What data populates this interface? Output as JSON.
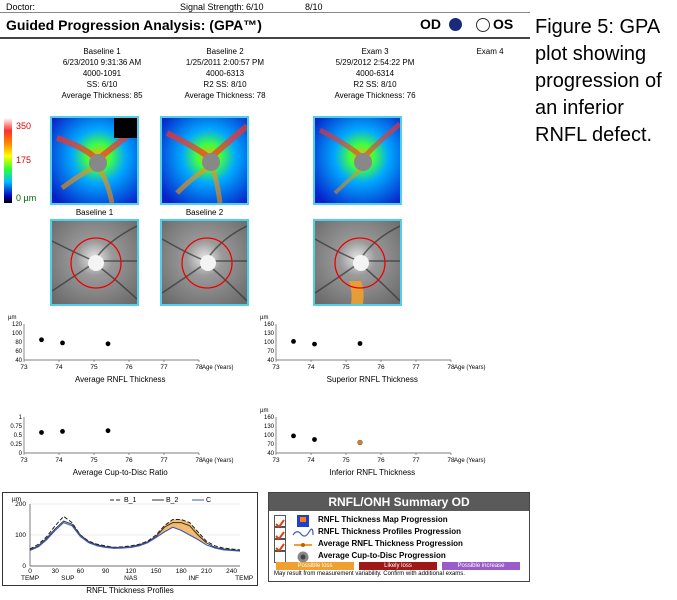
{
  "header": {
    "doctor_label": "Doctor:",
    "signal_label": "Signal Strength:",
    "signal_1": "6/10",
    "signal_2": "8/10",
    "title": "Guided Progression Analysis: (GPA™)",
    "od_label": "OD",
    "os_label": "OS"
  },
  "exams": [
    {
      "name": "Baseline 1",
      "datetime": "6/23/2010 9:31:36 AM",
      "id": "4000-1091",
      "ss": "SS: 6/10",
      "avg": "Average Thickness: 85"
    },
    {
      "name": "Baseline 2",
      "datetime": "1/25/2011 2:00:57 PM",
      "id": "4000-6313",
      "ss": "R2  SS: 8/10",
      "avg": "Average Thickness: 78"
    },
    {
      "name": "Exam 3",
      "datetime": "5/29/2012 2:54:22 PM",
      "id": "4000-6314",
      "ss": "R2  SS: 8/10",
      "avg": "Average Thickness: 76"
    },
    {
      "name": "Exam 4"
    }
  ],
  "colorbar": {
    "top": "350",
    "mid": "175",
    "bottom": "0 µm"
  },
  "fundus_captions": [
    "Baseline 1",
    "Baseline 2"
  ],
  "trend_charts": {
    "um_label": "µm",
    "age_axis": [
      "73",
      "74",
      "75",
      "76",
      "77",
      "78"
    ],
    "age_label": "Age (Years)",
    "avg_rnfl": {
      "title": "Average RNFL Thickness",
      "yticks": [
        "120",
        "100",
        "80",
        "60",
        "40"
      ]
    },
    "sup_rnfl": {
      "title": "Superior RNFL Thickness",
      "yticks": [
        "160",
        "130",
        "100",
        "70",
        "40"
      ]
    },
    "cdr": {
      "title": "Average Cup-to-Disc Ratio",
      "yticks": [
        "1",
        "0.75",
        "0.5",
        "0.25",
        "0"
      ]
    },
    "inf_rnfl": {
      "title": "Inferior RNFL Thickness",
      "yticks": [
        "160",
        "130",
        "100",
        "70",
        "40"
      ]
    }
  },
  "chart_data": [
    {
      "type": "scatter",
      "title": "Average RNFL Thickness",
      "xlabel": "Age (Years)",
      "ylabel": "µm",
      "xlim": [
        73,
        78
      ],
      "ylim": [
        40,
        120
      ],
      "series": [
        {
          "values": [
            {
              "x": 73.5,
              "y": 85
            },
            {
              "x": 74.1,
              "y": 78
            },
            {
              "x": 75.4,
              "y": 76
            }
          ]
        }
      ]
    },
    {
      "type": "scatter",
      "title": "Superior RNFL Thickness",
      "xlabel": "Age (Years)",
      "ylabel": "µm",
      "xlim": [
        73,
        78
      ],
      "ylim": [
        40,
        160
      ],
      "series": [
        {
          "values": [
            {
              "x": 73.5,
              "y": 102
            },
            {
              "x": 74.1,
              "y": 93
            },
            {
              "x": 75.4,
              "y": 95
            }
          ]
        }
      ]
    },
    {
      "type": "scatter",
      "title": "Average Cup-to-Disc Ratio",
      "xlabel": "Age (Years)",
      "xlim": [
        73,
        78
      ],
      "ylim": [
        0,
        1
      ],
      "series": [
        {
          "values": [
            {
              "x": 73.5,
              "y": 0.57
            },
            {
              "x": 74.1,
              "y": 0.6
            },
            {
              "x": 75.4,
              "y": 0.62
            }
          ]
        }
      ]
    },
    {
      "type": "scatter",
      "title": "Inferior RNFL Thickness",
      "xlabel": "Age (Years)",
      "ylabel": "µm",
      "xlim": [
        73,
        78
      ],
      "ylim": [
        40,
        160
      ],
      "series": [
        {
          "values": [
            {
              "x": 73.5,
              "y": 97
            },
            {
              "x": 74.1,
              "y": 85
            },
            {
              "x": 75.4,
              "y": 75
            }
          ]
        }
      ]
    },
    {
      "type": "line",
      "title": "RNFL Thickness Profiles",
      "ylabel": "µm",
      "ylim": [
        0,
        200
      ],
      "x": [
        0,
        10,
        20,
        30,
        40,
        50,
        60,
        70,
        80,
        90,
        100,
        110,
        120,
        130,
        140,
        150,
        160,
        170,
        180,
        190,
        200,
        210,
        220,
        230,
        240,
        250
      ],
      "xtick_values": [
        "0",
        "30",
        "60",
        "90",
        "120",
        "150",
        "180",
        "210",
        "240"
      ],
      "xtick_regions": [
        "TEMP",
        "SUP",
        "NAS",
        "INF",
        "TEMP"
      ],
      "series": [
        {
          "name": "B_1",
          "values": [
            55,
            70,
            95,
            130,
            160,
            140,
            100,
            80,
            70,
            65,
            60,
            62,
            65,
            70,
            80,
            100,
            130,
            150,
            150,
            140,
            110,
            80,
            65,
            58,
            55,
            52
          ]
        },
        {
          "name": "B_2",
          "values": [
            52,
            65,
            90,
            120,
            145,
            135,
            100,
            78,
            68,
            62,
            60,
            60,
            62,
            68,
            78,
            95,
            125,
            140,
            140,
            130,
            100,
            75,
            60,
            55,
            52,
            50
          ]
        },
        {
          "name": "C",
          "values": [
            50,
            62,
            85,
            115,
            140,
            130,
            95,
            75,
            65,
            60,
            57,
            58,
            60,
            65,
            75,
            92,
            110,
            125,
            115,
            100,
            85,
            68,
            58,
            52,
            50,
            48
          ]
        }
      ]
    }
  ],
  "profile_chart": {
    "ylabel": "µm",
    "yticks": [
      "200",
      "100",
      "0"
    ],
    "xticks": [
      "0",
      "30",
      "60",
      "90",
      "120",
      "150",
      "180",
      "210",
      "240"
    ],
    "regions": [
      "TEMP",
      "SUP",
      "NAS",
      "INF",
      "TEMP"
    ],
    "legend": [
      "B_1",
      "B_2",
      "C"
    ],
    "caption": "RNFL Thickness Profiles"
  },
  "summary": {
    "title": "RNFL/ONH Summary OD",
    "rows": [
      "RNFL Thickness Map Progression",
      "RNFL Thickness Profiles Progression",
      "Average RNFL Thickness Progression",
      "Average Cup-to-Disc Progression"
    ],
    "checked": [
      true,
      true,
      true,
      false
    ],
    "chips": [
      "Possible loss",
      "Likely loss",
      "Possible increase"
    ],
    "chip_colors": [
      "#f0a030",
      "#a01818",
      "#9a5cc8"
    ],
    "footnote": "May result from measurement variability. Confirm with additional exams."
  },
  "figure_caption": "Figure 5: GPA plot showing progression of an inferior RNFL defect.",
  "colors": {
    "accent": "#4fd0e8",
    "od_dot": "#1a2a7a",
    "point_orange": "#c8823a"
  }
}
